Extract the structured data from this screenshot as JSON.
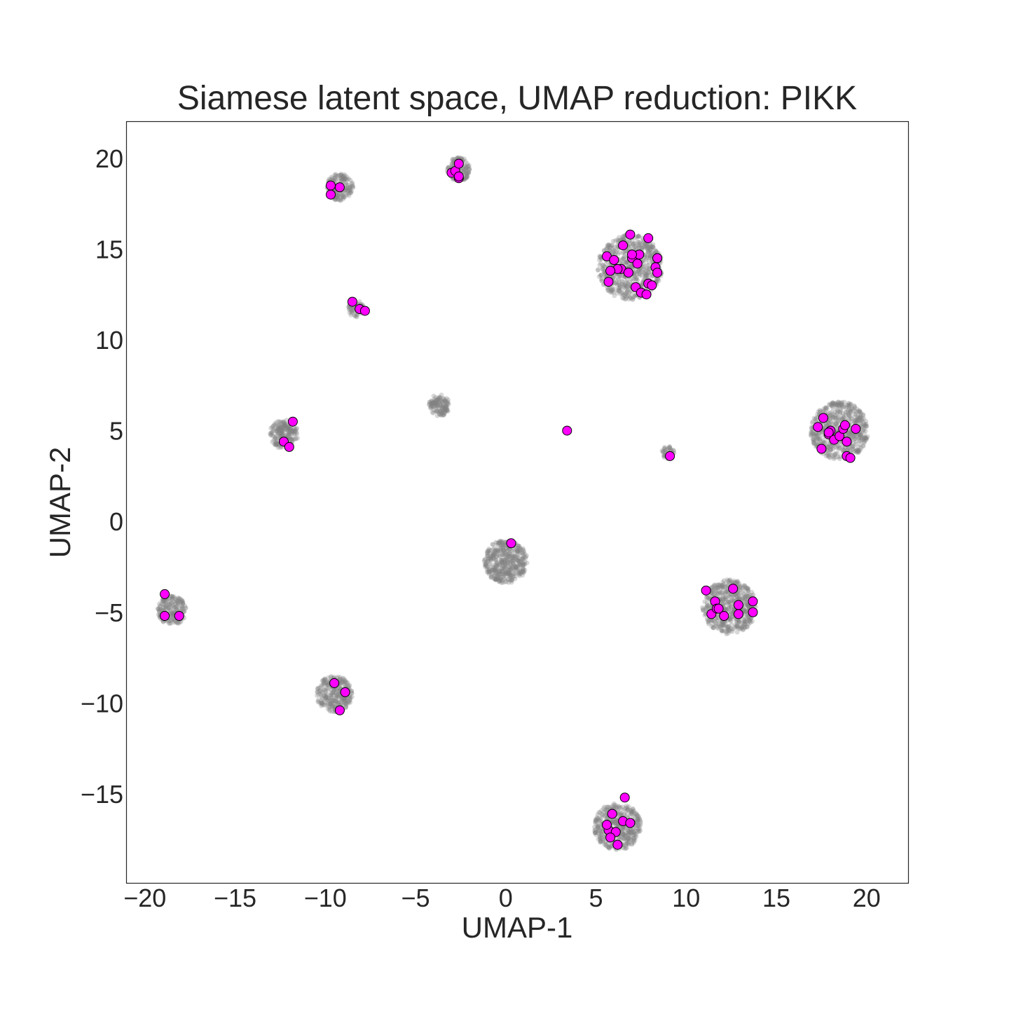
{
  "chart_data": {
    "type": "scatter",
    "title": "Siamese latent space, UMAP reduction: PIKK",
    "xlabel": "UMAP-1",
    "ylabel": "UMAP-2",
    "xlim": [
      -21.0,
      22.3
    ],
    "ylim": [
      -19.9,
      22.0
    ],
    "xticks": [
      -20,
      -15,
      -10,
      -5,
      0,
      5,
      10,
      15,
      20
    ],
    "yticks": [
      -15,
      -10,
      -5,
      0,
      5,
      10,
      15,
      20
    ],
    "xtick_labels": [
      "−20",
      "−15",
      "−10",
      "−5",
      "0",
      "5",
      "10",
      "15",
      "20"
    ],
    "ytick_labels": [
      "−15",
      "−10",
      "−5",
      "0",
      "5",
      "10",
      "15",
      "20"
    ],
    "grid": false,
    "colors": {
      "background_points": "#808080",
      "highlight_points": "#ff00ff",
      "highlight_edge": "#000000"
    },
    "background_clusters": [
      {
        "cx": 0.0,
        "cy": -2.2,
        "r": 1.2,
        "n": 450
      },
      {
        "cx": 6.9,
        "cy": 14.0,
        "r": 1.8,
        "n": 700
      },
      {
        "cx": 18.5,
        "cy": 5.0,
        "r": 1.6,
        "n": 600
      },
      {
        "cx": 12.4,
        "cy": -4.7,
        "r": 1.5,
        "n": 550
      },
      {
        "cx": 6.2,
        "cy": -16.8,
        "r": 1.3,
        "n": 450
      },
      {
        "cx": -9.5,
        "cy": -9.5,
        "r": 1.0,
        "n": 300
      },
      {
        "cx": -18.5,
        "cy": -4.9,
        "r": 0.8,
        "n": 200
      },
      {
        "cx": -12.3,
        "cy": 4.8,
        "r": 0.8,
        "n": 200
      },
      {
        "cx": -3.7,
        "cy": 6.4,
        "r": 0.6,
        "n": 130
      },
      {
        "cx": -9.2,
        "cy": 18.4,
        "r": 0.75,
        "n": 180
      },
      {
        "cx": -2.6,
        "cy": 19.4,
        "r": 0.65,
        "n": 150
      },
      {
        "cx": -8.3,
        "cy": 11.7,
        "r": 0.45,
        "n": 70
      },
      {
        "cx": 9.0,
        "cy": 3.8,
        "r": 0.35,
        "n": 40
      }
    ],
    "highlight_points": {
      "x": [
        0.3,
        3.4,
        9.1,
        -12.3,
        -12.0,
        -11.8,
        -8.5,
        -8.1,
        -7.8,
        -9.7,
        -9.7,
        -9.2,
        -3.0,
        -2.8,
        -2.6,
        -2.6,
        -2.6,
        -18.9,
        -18.9,
        -18.1,
        -9.5,
        -8.9,
        -9.2,
        5.6,
        5.7,
        6.0,
        6.4,
        6.5,
        6.8,
        6.9,
        7.0,
        7.2,
        7.3,
        7.4,
        7.5,
        7.8,
        7.9,
        7.9,
        8.1,
        8.3,
        8.4,
        8.4,
        8.4,
        6.2,
        5.8,
        7.0,
        17.3,
        17.5,
        17.6,
        17.9,
        18.0,
        18.2,
        18.5,
        18.7,
        18.8,
        18.9,
        18.9,
        19.1,
        19.4,
        17.9,
        11.1,
        11.4,
        11.6,
        11.7,
        11.8,
        12.1,
        12.6,
        12.9,
        12.9,
        13.7,
        13.7,
        6.6,
        5.9,
        5.7,
        5.6,
        6.1,
        6.5,
        6.9,
        5.8,
        6.2
      ],
      "y": [
        -1.2,
        5.0,
        3.6,
        4.4,
        4.1,
        5.5,
        12.1,
        11.7,
        11.6,
        18.5,
        18.0,
        18.4,
        19.2,
        19.3,
        19.7,
        18.9,
        19.0,
        -4.0,
        -5.2,
        -5.2,
        -8.9,
        -9.4,
        -10.4,
        14.6,
        13.2,
        14.4,
        13.9,
        15.2,
        13.7,
        15.8,
        14.5,
        12.9,
        14.2,
        14.7,
        12.6,
        12.5,
        13.1,
        15.6,
        13.0,
        14.0,
        13.7,
        14.5,
        14.5,
        13.9,
        13.8,
        14.7,
        5.2,
        4.0,
        5.7,
        4.8,
        5.0,
        4.5,
        4.7,
        5.1,
        5.3,
        3.6,
        4.4,
        3.5,
        5.1,
        4.9,
        -3.8,
        -5.1,
        -4.4,
        -4.8,
        -4.8,
        -5.2,
        -3.7,
        -4.6,
        -5.1,
        -4.4,
        -5.0,
        -15.2,
        -16.1,
        -17.0,
        -16.7,
        -17.1,
        -16.5,
        -16.6,
        -17.4,
        -17.8
      ]
    }
  }
}
